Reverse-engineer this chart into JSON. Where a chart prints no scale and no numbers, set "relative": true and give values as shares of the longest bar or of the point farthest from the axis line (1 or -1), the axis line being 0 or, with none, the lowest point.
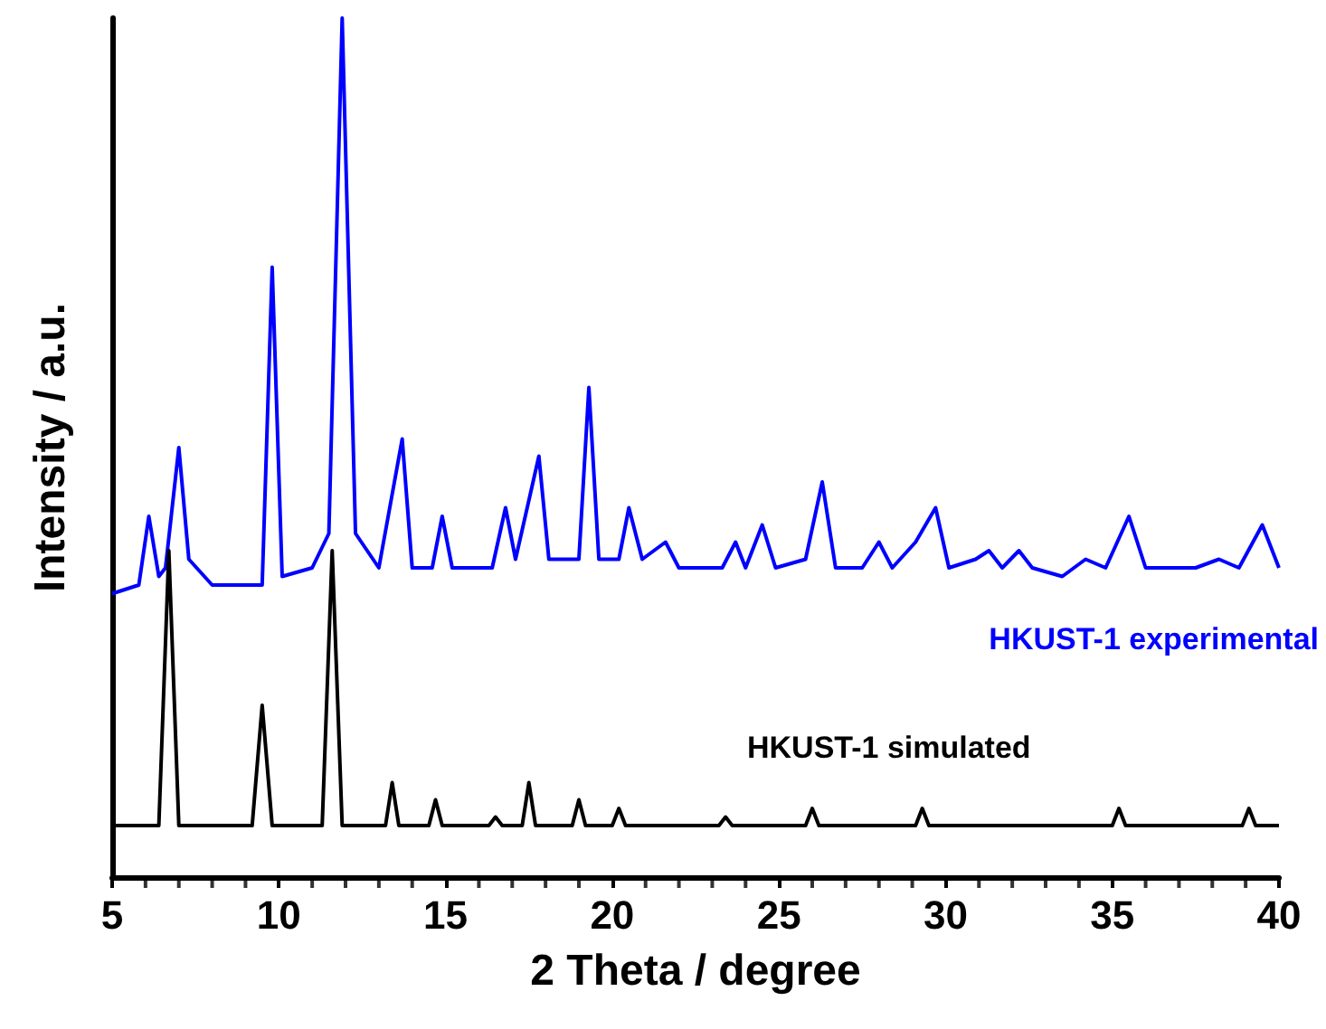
{
  "chart_data": {
    "type": "line",
    "xlabel": "2 Theta / degree",
    "ylabel": "Intensity / a.u.",
    "relative": true,
    "xlim": [
      5,
      40
    ],
    "xticks": [
      5,
      10,
      15,
      20,
      25,
      30,
      35,
      40
    ],
    "grid": false,
    "legend": false,
    "marker": "none",
    "line_style": "solid",
    "series": [
      {
        "name": "HKUST-1 experimental",
        "color": "#0000ff",
        "x": [
          5,
          5.8,
          6.1,
          6.4,
          6.6,
          7.0,
          7.3,
          8,
          9.5,
          9.8,
          10.1,
          11.0,
          11.5,
          11.9,
          12.3,
          13.0,
          13.7,
          14.0,
          14.6,
          14.9,
          15.2,
          16.4,
          16.8,
          17.1,
          17.8,
          18.1,
          19.0,
          19.3,
          19.6,
          20.2,
          20.5,
          20.9,
          21.6,
          22,
          23.3,
          23.7,
          24.0,
          24.5,
          24.9,
          25.8,
          26.3,
          26.7,
          27.5,
          28.0,
          28.4,
          29.1,
          29.7,
          30.1,
          30.9,
          31.3,
          31.7,
          32.2,
          32.6,
          33.5,
          34.2,
          34.8,
          35.5,
          36,
          37.5,
          38.2,
          38.8,
          39.5,
          40
        ],
        "values": [
          0.33,
          0.34,
          0.42,
          0.35,
          0.36,
          0.5,
          0.37,
          0.34,
          0.34,
          0.71,
          0.35,
          0.36,
          0.4,
          1.0,
          0.4,
          0.36,
          0.51,
          0.36,
          0.36,
          0.42,
          0.36,
          0.36,
          0.43,
          0.37,
          0.49,
          0.37,
          0.37,
          0.57,
          0.37,
          0.37,
          0.43,
          0.37,
          0.39,
          0.36,
          0.36,
          0.39,
          0.36,
          0.41,
          0.36,
          0.37,
          0.46,
          0.36,
          0.36,
          0.39,
          0.36,
          0.39,
          0.43,
          0.36,
          0.37,
          0.38,
          0.36,
          0.38,
          0.36,
          0.35,
          0.37,
          0.36,
          0.42,
          0.36,
          0.36,
          0.37,
          0.36,
          0.41,
          0.36
        ]
      },
      {
        "name": "HKUST-1 simulated",
        "color": "#000000",
        "x": [
          5,
          6.4,
          6.7,
          7.0,
          9.2,
          9.5,
          9.8,
          11.3,
          11.6,
          11.9,
          13.2,
          13.4,
          13.6,
          14.5,
          14.7,
          14.9,
          16.3,
          16.5,
          16.7,
          17.3,
          17.5,
          17.7,
          18.8,
          19.0,
          19.2,
          20.0,
          20.2,
          20.4,
          23.2,
          23.4,
          23.6,
          25.8,
          26.0,
          26.2,
          29.1,
          29.3,
          29.5,
          35.0,
          35.2,
          35.4,
          38.9,
          39.1,
          39.3,
          40
        ],
        "values": [
          0.06,
          0.06,
          0.38,
          0.06,
          0.06,
          0.2,
          0.06,
          0.06,
          0.38,
          0.06,
          0.06,
          0.11,
          0.06,
          0.06,
          0.09,
          0.06,
          0.06,
          0.07,
          0.06,
          0.06,
          0.11,
          0.06,
          0.06,
          0.09,
          0.06,
          0.06,
          0.08,
          0.06,
          0.06,
          0.07,
          0.06,
          0.06,
          0.08,
          0.06,
          0.06,
          0.08,
          0.06,
          0.06,
          0.08,
          0.06,
          0.06,
          0.08,
          0.06,
          0.06
        ]
      }
    ]
  }
}
